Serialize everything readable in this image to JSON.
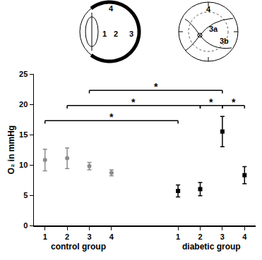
{
  "chart_data": {
    "type": "scatter",
    "categories": [
      "1",
      "2",
      "3",
      "4",
      null,
      null,
      "1",
      "2",
      "3",
      "4"
    ],
    "groups": [
      {
        "label": "control group",
        "from": 0,
        "to": 3
      },
      {
        "label": "diabetic group",
        "from": 6,
        "to": 9
      }
    ],
    "y_label": "O₂ in mmHg",
    "ylim": [
      0,
      25
    ],
    "yticks": [
      0,
      5,
      10,
      15,
      20,
      25
    ],
    "grid": false,
    "series": [
      {
        "color": "#8c8c8c",
        "marker": "circle",
        "values": [
          10.8,
          11.1,
          9.8,
          8.7,
          null,
          null,
          null,
          null,
          null,
          null
        ],
        "errors": [
          1.8,
          1.7,
          0.6,
          0.5,
          null,
          null,
          null,
          null,
          null,
          null
        ]
      },
      {
        "color": "#000000",
        "marker": "square",
        "values": [
          null,
          null,
          null,
          null,
          null,
          null,
          5.7,
          6.0,
          15.5,
          8.3
        ],
        "errors": [
          null,
          null,
          null,
          null,
          null,
          null,
          1.0,
          1.1,
          2.5,
          1.4
        ]
      }
    ],
    "significance": [
      {
        "from": 0,
        "to": 6,
        "y": 17.3,
        "label": "*"
      },
      {
        "from": 1,
        "to": 7,
        "y": 19.8,
        "label": "*"
      },
      {
        "from": 7,
        "to": 8,
        "y": 19.8,
        "label": "*"
      },
      {
        "from": 8,
        "to": 9,
        "y": 19.8,
        "label": "*"
      },
      {
        "from": 2,
        "to": 8,
        "y": 22.3,
        "label": "*"
      }
    ],
    "diagrams": {
      "eye_section": [
        "1",
        "2",
        "3",
        "4"
      ],
      "fundus": [
        "4",
        "3a",
        "3b"
      ]
    }
  }
}
